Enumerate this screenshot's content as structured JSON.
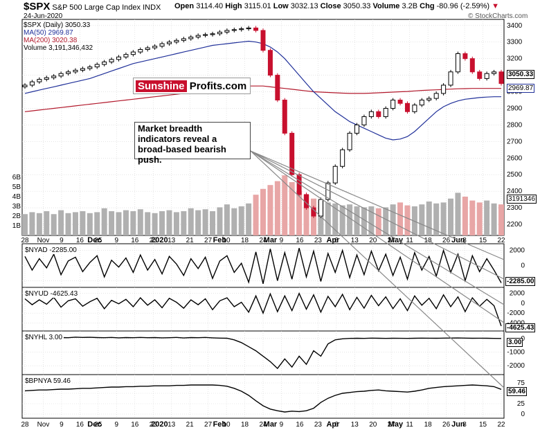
{
  "header": {
    "symbol": "$SPX",
    "name": "S&P 500 Large Cap Index",
    "exchange": "INDX",
    "date": "24-Jun-2020",
    "open_label": "Open",
    "open": "3114.40",
    "high_label": "High",
    "high": "3115.01",
    "low_label": "Low",
    "low": "3032.13",
    "close_label": "Close",
    "close": "3050.33",
    "volume_label": "Volume",
    "volume": "3.2B",
    "chg_label": "Chg",
    "chg": "-80.96 (-2.59%)",
    "chg_arrow": "▼",
    "brand": "© StockCharts.com"
  },
  "legend": {
    "price": "$SPX (Daily) 3050.33",
    "ma50": "MA(50) 2969.87",
    "ma200": "MA(200) 3020.38",
    "volume": "Volume 3,191,346,432"
  },
  "watermark": {
    "part1": "Sunshine",
    "part2": "Profits.com"
  },
  "annotation": "Market breadth indicators reveal a broad-based bearish push.",
  "colors": {
    "up": "#000000",
    "down": "#c8102e",
    "ma50": "#1f2f99",
    "ma200": "#b2182b",
    "vol_up": "#b0b0b0",
    "vol_down": "#e8a6a6",
    "grid": "#d4d4d4"
  },
  "x_axis": {
    "months": [
      "Dec",
      "2020",
      "Feb",
      "Mar",
      "Apr",
      "May",
      "Jun"
    ],
    "days": [
      "28",
      "Nov",
      "9",
      "16",
      "25",
      "9",
      "16",
      "23",
      "13",
      "21",
      "27",
      "10",
      "18",
      "24",
      "9",
      "16",
      "23",
      "6",
      "13",
      "20",
      "27",
      "11",
      "18",
      "26",
      "8",
      "15",
      "22"
    ],
    "days_lower": [
      "28",
      "Nov",
      "9",
      "16",
      "25",
      "9",
      "16",
      "23",
      "13",
      "21",
      "27",
      "10",
      "18",
      "24",
      "9",
      "16",
      "23",
      "6",
      "13",
      "20",
      "27",
      "11",
      "18",
      "26",
      "8",
      "15",
      "22"
    ]
  },
  "chart_data": [
    {
      "type": "candlestick",
      "title": "$SPX S&P 500 Large Cap Index",
      "ylim": [
        2150,
        3420
      ],
      "y_ticks": [
        "3400",
        "3300",
        "3200",
        "3100",
        "3000",
        "2900",
        "2800",
        "2700",
        "2600",
        "2500",
        "2400",
        "2300",
        "2200"
      ],
      "last_price_label": "3050.33",
      "ma50_label": "2969.87",
      "price_path": [
        3040,
        3060,
        3075,
        3085,
        3095,
        3110,
        3120,
        3130,
        3140,
        3150,
        3165,
        3180,
        3195,
        3210,
        3225,
        3240,
        3255,
        3265,
        3275,
        3290,
        3300,
        3310,
        3320,
        3330,
        3340,
        3345,
        3350,
        3360,
        3370,
        3375,
        3380,
        3385,
        3370,
        3250,
        3100,
        2950,
        2750,
        2500,
        2380,
        2300,
        2250,
        2350,
        2450,
        2550,
        2650,
        2750,
        2800,
        2850,
        2880,
        2850,
        2900,
        2950,
        2930,
        2880,
        2920,
        2950,
        2960,
        2990,
        3040,
        3120,
        3230,
        3200,
        3120,
        3080,
        3110,
        3120,
        3050
      ],
      "ma50_path": [
        2990,
        3000,
        3010,
        3020,
        3030,
        3040,
        3050,
        3060,
        3070,
        3080,
        3095,
        3110,
        3125,
        3140,
        3155,
        3170,
        3180,
        3190,
        3200,
        3210,
        3220,
        3230,
        3240,
        3250,
        3260,
        3270,
        3280,
        3285,
        3290,
        3295,
        3300,
        3305,
        3300,
        3290,
        3270,
        3240,
        3200,
        3150,
        3100,
        3050,
        3000,
        2960,
        2920,
        2880,
        2850,
        2820,
        2800,
        2780,
        2760,
        2740,
        2720,
        2710,
        2715,
        2730,
        2760,
        2800,
        2840,
        2880,
        2910,
        2930,
        2945,
        2955,
        2960,
        2965,
        2968,
        2970,
        2970
      ],
      "ma200_path": [
        2880,
        2885,
        2890,
        2895,
        2900,
        2905,
        2910,
        2915,
        2920,
        2925,
        2930,
        2935,
        2940,
        2945,
        2950,
        2955,
        2960,
        2965,
        2970,
        2975,
        2980,
        2985,
        2990,
        2995,
        3000,
        3005,
        3010,
        3015,
        3020,
        3025,
        3030,
        3035,
        3035,
        3035,
        3030,
        3025,
        3020,
        3015,
        3010,
        3005,
        3000,
        2998,
        2996,
        2994,
        2992,
        2990,
        2990,
        2990,
        2992,
        2994,
        2996,
        2998,
        3000,
        3002,
        3005,
        3008,
        3010,
        3012,
        3014,
        3016,
        3018,
        3019,
        3020,
        3020,
        3020,
        3020,
        3020
      ]
    },
    {
      "type": "bar",
      "name": "Volume",
      "y_ticks": [
        "6B",
        "5B",
        "4B",
        "3B",
        "2B",
        "1B"
      ],
      "last_label": "3191346",
      "values": [
        2.2,
        2.4,
        2.3,
        2.5,
        2.2,
        2.6,
        2.3,
        2.4,
        2.5,
        2.3,
        2.4,
        2.8,
        2.5,
        2.4,
        2.6,
        2.5,
        2.7,
        2.4,
        2.3,
        2.5,
        2.6,
        2.4,
        2.5,
        2.8,
        2.6,
        2.7,
        2.5,
        2.9,
        3.2,
        2.8,
        3.0,
        3.3,
        4.2,
        4.8,
        5.2,
        5.6,
        6.2,
        5.5,
        4.6,
        4.2,
        3.8,
        3.6,
        3.4,
        3.3,
        3.1,
        3.2,
        3.0,
        2.9,
        3.0,
        2.8,
        2.9,
        3.2,
        3.4,
        3.1,
        3.0,
        3.2,
        3.5,
        3.3,
        3.4,
        3.8,
        4.4,
        4.0,
        3.6,
        3.4,
        3.6,
        3.3,
        3.2
      ]
    },
    {
      "type": "line",
      "name": "$NYAD",
      "label": "$NYAD -2285.00",
      "y_ticks": [
        "2000",
        "0",
        "-2000"
      ],
      "last_label": "-2285.00",
      "ylim": [
        -2600,
        2600
      ],
      "values": [
        1200,
        -600,
        900,
        -300,
        1500,
        -1200,
        600,
        1100,
        -800,
        400,
        1300,
        -1500,
        700,
        -200,
        1000,
        -900,
        1400,
        -600,
        800,
        -1100,
        1200,
        200,
        -1300,
        900,
        -400,
        1100,
        -1700,
        600,
        1300,
        -900,
        300,
        -2200,
        1800,
        -2400,
        2200,
        -2000,
        1700,
        -1800,
        2300,
        -1500,
        1900,
        -2100,
        1600,
        -900,
        2000,
        -1600,
        1400,
        -1200,
        1900,
        -700,
        1500,
        -1300,
        1100,
        -1800,
        1700,
        -600,
        1200,
        -1400,
        2000,
        -900,
        1500,
        -2000,
        1300,
        -800,
        900,
        -600,
        -2285
      ]
    },
    {
      "type": "line",
      "name": "$NYUD",
      "label": "$NYUD -4625.43",
      "y_ticks": [
        "2000",
        "0",
        "-2000",
        "-4000"
      ],
      "last_label": "-4625.43",
      "ylim": [
        -5200,
        2800
      ],
      "values": [
        900,
        -300,
        700,
        -200,
        1200,
        -800,
        500,
        900,
        -600,
        300,
        1000,
        -1100,
        600,
        -100,
        800,
        -700,
        1100,
        -400,
        700,
        -900,
        1000,
        200,
        -1000,
        700,
        -300,
        900,
        -1300,
        500,
        1100,
        -700,
        200,
        -1800,
        1500,
        -2000,
        1900,
        -1700,
        1500,
        -1500,
        2000,
        -1200,
        1700,
        -1800,
        1400,
        -700,
        1800,
        -1300,
        1200,
        -1000,
        1600,
        -500,
        1300,
        -1100,
        900,
        -1500,
        1500,
        -400,
        1000,
        -1100,
        1700,
        -700,
        1300,
        -1700,
        1100,
        -600,
        800,
        -500,
        -4625.43
      ]
    },
    {
      "type": "line",
      "name": "$NYHL",
      "label": "$NYHL 3.00",
      "y_ticks": [
        "0",
        "-1000",
        "-2000"
      ],
      "last_label": "3.00",
      "ylim": [
        -2500,
        400
      ],
      "values": [
        40,
        80,
        60,
        90,
        50,
        70,
        60,
        100,
        80,
        90,
        70,
        60,
        80,
        50,
        70,
        60,
        80,
        60,
        70,
        50,
        60,
        80,
        40,
        70,
        60,
        80,
        50,
        30,
        20,
        -100,
        -300,
        -600,
        -900,
        -1300,
        -1700,
        -2200,
        -1500,
        -2100,
        -1300,
        -1900,
        -900,
        -1300,
        -400,
        -100,
        -20,
        10,
        20,
        10,
        30,
        20,
        10,
        20,
        15,
        10,
        20,
        30,
        25,
        20,
        30,
        35,
        40,
        30,
        20,
        25,
        20,
        10,
        3
      ]
    },
    {
      "type": "line",
      "name": "$BPNYA",
      "label": "$BPNYA 59.46",
      "y_ticks": [
        "75",
        "50",
        "25",
        "0"
      ],
      "last_label": "59.46",
      "ylim": [
        -5,
        90
      ],
      "values": [
        56,
        57,
        58,
        58,
        59,
        60,
        60,
        61,
        62,
        62,
        63,
        64,
        65,
        65,
        66,
        66,
        67,
        67,
        68,
        68,
        68,
        69,
        69,
        70,
        70,
        70,
        70,
        69,
        67,
        62,
        55,
        45,
        32,
        20,
        12,
        8,
        5,
        7,
        6,
        8,
        14,
        28,
        38,
        45,
        50,
        52,
        54,
        55,
        57,
        58,
        56,
        55,
        54,
        53,
        55,
        58,
        62,
        64,
        66,
        67,
        68,
        69,
        70,
        69,
        68,
        66,
        59.46
      ]
    }
  ]
}
